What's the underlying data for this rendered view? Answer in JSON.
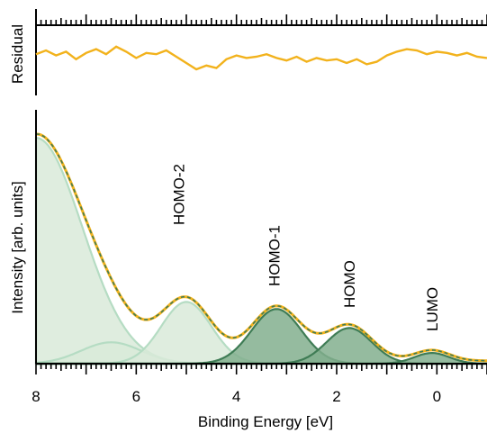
{
  "chart_data": [
    {
      "type": "line",
      "panel": "residual",
      "ylabel": "Residual",
      "xlim": [
        8,
        -1.0
      ],
      "series": [
        {
          "color": "#f2b21c",
          "x": [
            8.0,
            7.8,
            7.6,
            7.4,
            7.2,
            7.0,
            6.8,
            6.6,
            6.4,
            6.2,
            6.0,
            5.8,
            5.6,
            5.4,
            5.2,
            5.0,
            4.8,
            4.6,
            4.4,
            4.2,
            4.0,
            3.8,
            3.6,
            3.4,
            3.2,
            3.0,
            2.8,
            2.6,
            2.4,
            2.2,
            2.0,
            1.8,
            1.6,
            1.4,
            1.2,
            1.0,
            0.8,
            0.6,
            0.4,
            0.2,
            0.0,
            -0.2,
            -0.4,
            -0.6,
            -0.8,
            -1.0
          ],
          "values": [
            0.2,
            0.5,
            0.1,
            0.4,
            -0.2,
            0.3,
            0.6,
            0.2,
            0.8,
            0.4,
            -0.1,
            0.3,
            0.2,
            0.5,
            0.0,
            -0.5,
            -1.0,
            -0.7,
            -0.9,
            -0.2,
            0.1,
            -0.1,
            0.0,
            0.2,
            -0.1,
            -0.3,
            0.0,
            -0.4,
            -0.1,
            -0.3,
            -0.2,
            -0.5,
            -0.2,
            -0.6,
            -0.4,
            0.1,
            0.4,
            0.6,
            0.5,
            0.2,
            0.4,
            0.3,
            0.1,
            0.3,
            0.0,
            -0.1
          ]
        }
      ]
    },
    {
      "type": "area",
      "panel": "spectrum",
      "xlabel": "Binding Energy [eV]",
      "ylabel": "Intensity [arb. units]",
      "xlim": [
        8,
        -1.0
      ],
      "ylim": [
        0,
        1.0
      ],
      "xticks": [
        "8",
        "6",
        "4",
        "2",
        "0"
      ],
      "peaks": [
        {
          "name": "background",
          "type": "exp",
          "amp": 0.95,
          "decay": 0.75,
          "start": 8.0,
          "color": "#d9ead9",
          "edge": "#b5dcc3"
        },
        {
          "name": "side",
          "center": 6.5,
          "amp": 0.09,
          "sigma": 0.6,
          "color": "#d9ead9",
          "edge": "#b5dcc3"
        },
        {
          "name": "HOMO-2",
          "center": 5.0,
          "amp": 0.26,
          "sigma": 0.5,
          "color": "#d9ead9",
          "edge": "#b5dcc3"
        },
        {
          "name": "HOMO-1",
          "center": 3.2,
          "amp": 0.23,
          "sigma": 0.5,
          "color": "#83af8e",
          "edge": "#3f7c55"
        },
        {
          "name": "HOMO",
          "center": 1.75,
          "amp": 0.15,
          "sigma": 0.45,
          "color": "#83af8e",
          "edge": "#3f7c55"
        },
        {
          "name": "LUMO",
          "center": 0.1,
          "amp": 0.045,
          "sigma": 0.35,
          "color": "#83af8e",
          "edge": "#3f7c55"
        }
      ],
      "fit_color": "#f2b21c",
      "model_color": "#3f7c55",
      "annotations": [
        {
          "text": "HOMO-2",
          "x": 5.15
        },
        {
          "text": "HOMO-1",
          "x": 3.25
        },
        {
          "text": "HOMO",
          "x": 1.75
        },
        {
          "text": "LUMO",
          "x": 0.1
        }
      ]
    }
  ]
}
